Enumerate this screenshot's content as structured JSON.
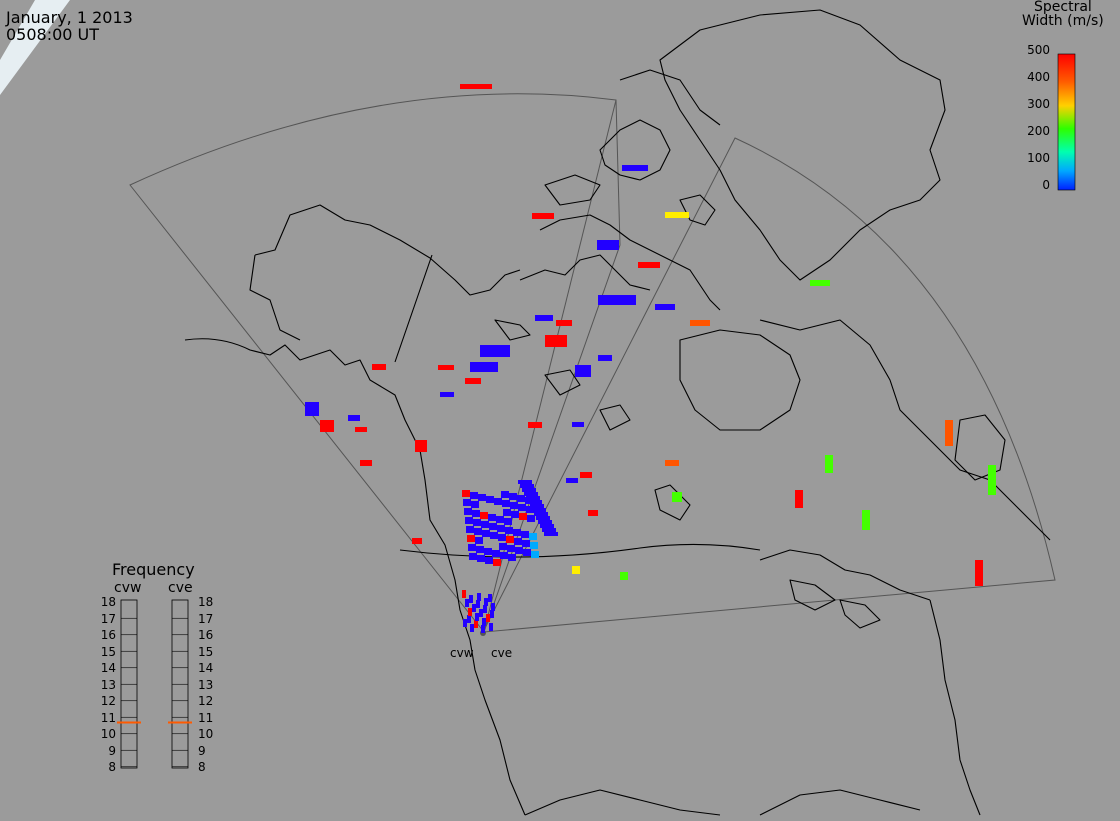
{
  "header": {
    "date": "January, 1 2013",
    "time": "0508:00 UT"
  },
  "colorbar": {
    "title_line1": "Spectral",
    "title_line2": "Width (m/s)",
    "ticks": [
      "500",
      "400",
      "300",
      "200",
      "100",
      "0"
    ],
    "colors": [
      "#ff0000",
      "#ff6a00",
      "#ffd000",
      "#b7ff00",
      "#2dff00",
      "#00ff9a",
      "#00b8ff",
      "#0030ff"
    ]
  },
  "radars": [
    {
      "name": "cvw",
      "label": "cvw"
    },
    {
      "name": "cve",
      "label": "cve"
    }
  ],
  "frequency": {
    "title": "Frequency",
    "unit_ticks": [
      "18",
      "17",
      "16",
      "15",
      "14",
      "13",
      "12",
      "11",
      "10",
      "9",
      "8"
    ],
    "cvw_mhz": 10.7,
    "cve_mhz": 10.7,
    "marker_color": "#ff5a00"
  },
  "colors": {
    "background": "#9b9b9b",
    "coastline": "#000000",
    "fov": "#505050",
    "arctic_haze": "#dfe9ef"
  }
}
